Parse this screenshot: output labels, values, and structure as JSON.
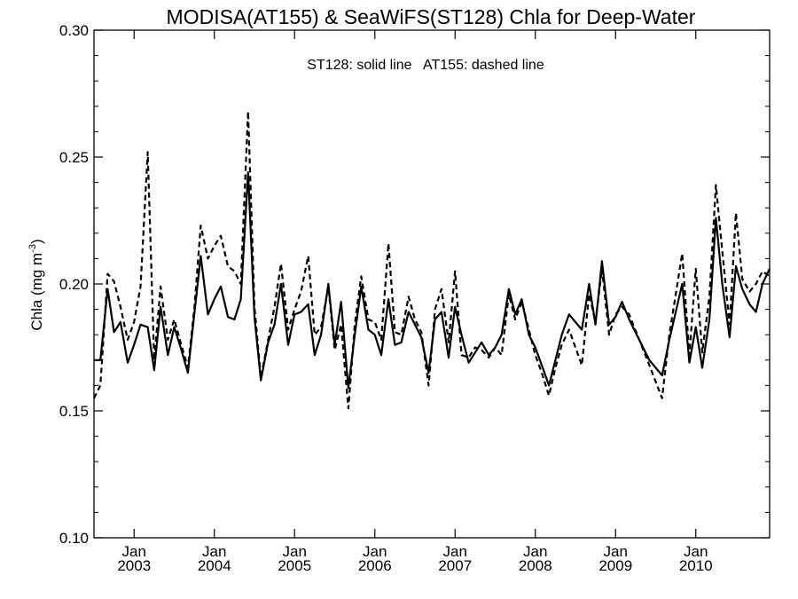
{
  "chart_data": {
    "type": "line",
    "title": "MODISA(AT155) & SeaWiFS(ST128)  Chla for Deep-Water",
    "annotation": "ST128: solid line   AT155: dashed line",
    "ylabel_main": "Chla (mg m",
    "ylabel_sup": "-3",
    "ylabel_close": ")",
    "xlim": [
      2002.5,
      2010.92
    ],
    "ylim": [
      0.1,
      0.3
    ],
    "y_ticks": [
      0.1,
      0.15,
      0.2,
      0.25,
      0.3
    ],
    "y_tick_labels": [
      "0.10",
      "0.15",
      "0.20",
      "0.25",
      "0.30"
    ],
    "x_ticks": [
      {
        "month": "Jan",
        "year": "2003",
        "x": 2003.0
      },
      {
        "month": "Jan",
        "year": "2004",
        "x": 2004.0
      },
      {
        "month": "Jan",
        "year": "2005",
        "x": 2005.0
      },
      {
        "month": "Jan",
        "year": "2006",
        "x": 2006.0
      },
      {
        "month": "Jan",
        "year": "2007",
        "x": 2007.0
      },
      {
        "month": "Jan",
        "year": "2008",
        "x": 2008.0
      },
      {
        "month": "Jan",
        "year": "2009",
        "x": 2009.0
      },
      {
        "month": "Jan",
        "year": "2010",
        "x": 2010.0
      }
    ],
    "grid": false,
    "series": [
      {
        "name": "ST128",
        "style": "solid",
        "color": "#000000",
        "points": [
          [
            2002.5,
            0.17
          ],
          [
            2002.58,
            0.17
          ],
          [
            2002.67,
            0.198
          ],
          [
            2002.75,
            0.181
          ],
          [
            2002.83,
            0.185
          ],
          [
            2002.92,
            0.169
          ],
          [
            2003.0,
            0.176
          ],
          [
            2003.08,
            0.184
          ],
          [
            2003.17,
            0.183
          ],
          [
            2003.25,
            0.166
          ],
          [
            2003.33,
            0.191
          ],
          [
            2003.42,
            0.172
          ],
          [
            2003.5,
            0.183
          ],
          [
            2003.58,
            0.175
          ],
          [
            2003.67,
            0.165
          ],
          [
            2003.75,
            0.188
          ],
          [
            2003.83,
            0.211
          ],
          [
            2003.92,
            0.188
          ],
          [
            2004.0,
            0.194
          ],
          [
            2004.08,
            0.199
          ],
          [
            2004.17,
            0.187
          ],
          [
            2004.25,
            0.186
          ],
          [
            2004.33,
            0.194
          ],
          [
            2004.42,
            0.244
          ],
          [
            2004.5,
            0.187
          ],
          [
            2004.58,
            0.162
          ],
          [
            2004.67,
            0.177
          ],
          [
            2004.75,
            0.184
          ],
          [
            2004.83,
            0.2
          ],
          [
            2004.92,
            0.176
          ],
          [
            2005.0,
            0.188
          ],
          [
            2005.08,
            0.189
          ],
          [
            2005.17,
            0.192
          ],
          [
            2005.25,
            0.172
          ],
          [
            2005.33,
            0.18
          ],
          [
            2005.42,
            0.2
          ],
          [
            2005.5,
            0.176
          ],
          [
            2005.58,
            0.193
          ],
          [
            2005.67,
            0.159
          ],
          [
            2005.75,
            0.18
          ],
          [
            2005.83,
            0.199
          ],
          [
            2005.92,
            0.182
          ],
          [
            2006.0,
            0.18
          ],
          [
            2006.08,
            0.172
          ],
          [
            2006.17,
            0.194
          ],
          [
            2006.25,
            0.176
          ],
          [
            2006.33,
            0.177
          ],
          [
            2006.42,
            0.189
          ],
          [
            2006.5,
            0.184
          ],
          [
            2006.58,
            0.179
          ],
          [
            2006.67,
            0.165
          ],
          [
            2006.75,
            0.186
          ],
          [
            2006.83,
            0.189
          ],
          [
            2006.92,
            0.171
          ],
          [
            2007.0,
            0.191
          ],
          [
            2007.08,
            0.18
          ],
          [
            2007.17,
            0.169
          ],
          [
            2007.25,
            0.173
          ],
          [
            2007.33,
            0.177
          ],
          [
            2007.42,
            0.172
          ],
          [
            2007.5,
            0.175
          ],
          [
            2007.58,
            0.18
          ],
          [
            2007.67,
            0.198
          ],
          [
            2007.75,
            0.188
          ],
          [
            2007.83,
            0.194
          ],
          [
            2007.92,
            0.18
          ],
          [
            2008.0,
            0.175
          ],
          [
            2008.08,
            0.168
          ],
          [
            2008.17,
            0.16
          ],
          [
            2008.25,
            0.17
          ],
          [
            2008.33,
            0.18
          ],
          [
            2008.42,
            0.188
          ],
          [
            2008.58,
            0.182
          ],
          [
            2008.67,
            0.2
          ],
          [
            2008.75,
            0.184
          ],
          [
            2008.83,
            0.209
          ],
          [
            2008.92,
            0.184
          ],
          [
            2009.0,
            0.187
          ],
          [
            2009.08,
            0.193
          ],
          [
            2009.17,
            0.186
          ],
          [
            2009.42,
            0.17
          ],
          [
            2009.58,
            0.164
          ],
          [
            2009.67,
            0.178
          ],
          [
            2009.83,
            0.2
          ],
          [
            2009.92,
            0.169
          ],
          [
            2010.0,
            0.183
          ],
          [
            2010.08,
            0.167
          ],
          [
            2010.17,
            0.186
          ],
          [
            2010.25,
            0.226
          ],
          [
            2010.33,
            0.2
          ],
          [
            2010.42,
            0.179
          ],
          [
            2010.5,
            0.207
          ],
          [
            2010.58,
            0.198
          ],
          [
            2010.67,
            0.192
          ],
          [
            2010.75,
            0.189
          ],
          [
            2010.83,
            0.2
          ],
          [
            2010.92,
            0.206
          ]
        ]
      },
      {
        "name": "AT155",
        "style": "dashed",
        "color": "#000000",
        "points": [
          [
            2002.5,
            0.155
          ],
          [
            2002.58,
            0.16
          ],
          [
            2002.67,
            0.204
          ],
          [
            2002.75,
            0.201
          ],
          [
            2002.83,
            0.191
          ],
          [
            2002.92,
            0.178
          ],
          [
            2003.0,
            0.185
          ],
          [
            2003.08,
            0.199
          ],
          [
            2003.17,
            0.252
          ],
          [
            2003.25,
            0.17
          ],
          [
            2003.33,
            0.199
          ],
          [
            2003.42,
            0.178
          ],
          [
            2003.5,
            0.186
          ],
          [
            2003.58,
            0.177
          ],
          [
            2003.67,
            0.167
          ],
          [
            2003.75,
            0.19
          ],
          [
            2003.83,
            0.223
          ],
          [
            2003.92,
            0.21
          ],
          [
            2004.0,
            0.215
          ],
          [
            2004.08,
            0.219
          ],
          [
            2004.17,
            0.207
          ],
          [
            2004.25,
            0.205
          ],
          [
            2004.33,
            0.2
          ],
          [
            2004.42,
            0.268
          ],
          [
            2004.5,
            0.191
          ],
          [
            2004.58,
            0.163
          ],
          [
            2004.67,
            0.178
          ],
          [
            2004.75,
            0.191
          ],
          [
            2004.83,
            0.208
          ],
          [
            2004.92,
            0.182
          ],
          [
            2005.0,
            0.19
          ],
          [
            2005.08,
            0.197
          ],
          [
            2005.17,
            0.211
          ],
          [
            2005.25,
            0.18
          ],
          [
            2005.33,
            0.183
          ],
          [
            2005.42,
            0.199
          ],
          [
            2005.5,
            0.174
          ],
          [
            2005.58,
            0.184
          ],
          [
            2005.67,
            0.151
          ],
          [
            2005.75,
            0.184
          ],
          [
            2005.83,
            0.203
          ],
          [
            2005.92,
            0.186
          ],
          [
            2006.0,
            0.185
          ],
          [
            2006.08,
            0.178
          ],
          [
            2006.17,
            0.216
          ],
          [
            2006.25,
            0.181
          ],
          [
            2006.33,
            0.18
          ],
          [
            2006.42,
            0.195
          ],
          [
            2006.5,
            0.186
          ],
          [
            2006.58,
            0.181
          ],
          [
            2006.67,
            0.16
          ],
          [
            2006.75,
            0.19
          ],
          [
            2006.83,
            0.198
          ],
          [
            2006.92,
            0.177
          ],
          [
            2007.0,
            0.205
          ],
          [
            2007.08,
            0.172
          ],
          [
            2007.17,
            0.171
          ],
          [
            2007.25,
            0.175
          ],
          [
            2007.33,
            0.174
          ],
          [
            2007.42,
            0.171
          ],
          [
            2007.5,
            0.175
          ],
          [
            2007.58,
            0.172
          ],
          [
            2007.67,
            0.196
          ],
          [
            2007.75,
            0.186
          ],
          [
            2007.83,
            0.193
          ],
          [
            2007.92,
            0.182
          ],
          [
            2008.0,
            0.172
          ],
          [
            2008.08,
            0.165
          ],
          [
            2008.17,
            0.156
          ],
          [
            2008.25,
            0.167
          ],
          [
            2008.33,
            0.176
          ],
          [
            2008.42,
            0.182
          ],
          [
            2008.58,
            0.168
          ],
          [
            2008.67,
            0.196
          ],
          [
            2008.75,
            0.185
          ],
          [
            2008.83,
            0.206
          ],
          [
            2008.92,
            0.18
          ],
          [
            2009.0,
            0.188
          ],
          [
            2009.08,
            0.191
          ],
          [
            2009.17,
            0.188
          ],
          [
            2009.42,
            0.168
          ],
          [
            2009.58,
            0.155
          ],
          [
            2009.67,
            0.18
          ],
          [
            2009.83,
            0.212
          ],
          [
            2009.92,
            0.172
          ],
          [
            2010.0,
            0.206
          ],
          [
            2010.08,
            0.173
          ],
          [
            2010.17,
            0.195
          ],
          [
            2010.25,
            0.239
          ],
          [
            2010.33,
            0.213
          ],
          [
            2010.42,
            0.184
          ],
          [
            2010.5,
            0.228
          ],
          [
            2010.58,
            0.202
          ],
          [
            2010.67,
            0.197
          ],
          [
            2010.75,
            0.2
          ],
          [
            2010.83,
            0.205
          ],
          [
            2010.92,
            0.203
          ]
        ]
      }
    ]
  }
}
